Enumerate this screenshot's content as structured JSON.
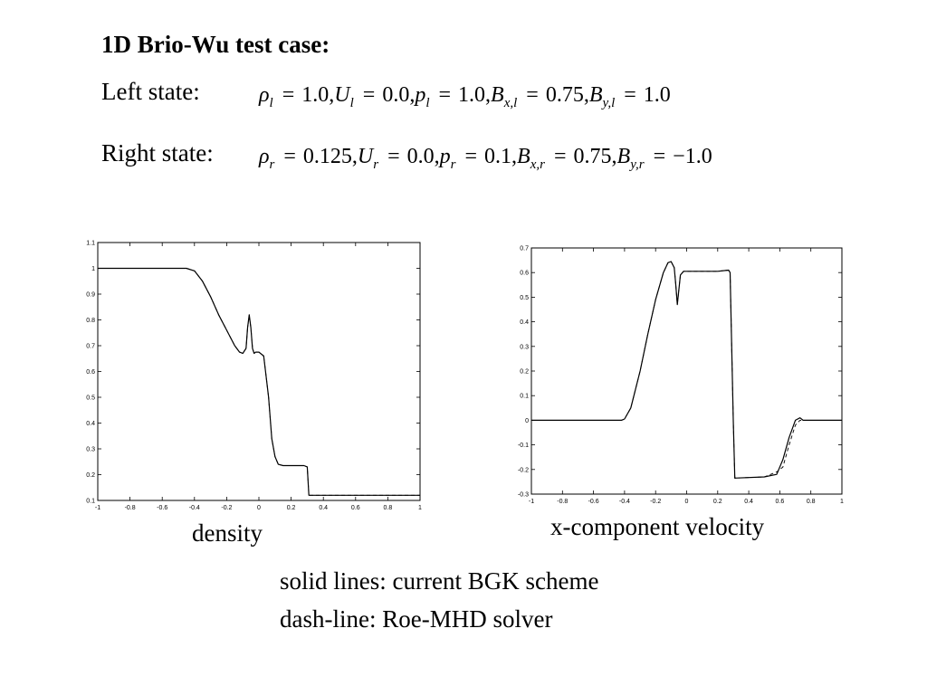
{
  "slide": {
    "title": "1D Brio-Wu test case:",
    "left_label": "Left state:",
    "right_label": "Right state:",
    "left_terms": [
      {
        "sym": "ρ",
        "sub": "l",
        "val": "1.0,"
      },
      {
        "sym": "U",
        "sub": "l",
        "val": "0.0,"
      },
      {
        "sym": "p",
        "sub": "l",
        "val": "1.0,"
      },
      {
        "sym": "B",
        "sub": "x,l",
        "val": "0.75,"
      },
      {
        "sym": "B",
        "sub": "y,l",
        "val": "1.0"
      }
    ],
    "right_terms": [
      {
        "sym": "ρ",
        "sub": "r",
        "val": "0.125,"
      },
      {
        "sym": "U",
        "sub": "r",
        "val": "0.0,"
      },
      {
        "sym": "p",
        "sub": "r",
        "val": "0.1,"
      },
      {
        "sym": "B",
        "sub": "x,r",
        "val": "0.75,"
      },
      {
        "sym": "B",
        "sub": "y,r",
        "val": "−1.0"
      }
    ],
    "equals_sign": "=",
    "legend_line1": "solid lines: current BGK scheme",
    "legend_line2": "dash-line: Roe-MHD solver"
  },
  "chart_data": [
    {
      "type": "line",
      "caption": "density",
      "xlim": [
        -1,
        1
      ],
      "ylim": [
        0.1,
        1.1
      ],
      "xticks": [
        -1,
        -0.8,
        -0.6,
        -0.4,
        -0.2,
        0,
        0.2,
        0.4,
        0.6,
        0.8,
        1
      ],
      "xtick_labels": [
        "-1",
        "-0.8",
        "-0.6",
        "-0.4",
        "-0.2",
        "0",
        "0.2",
        "0.4",
        "0.6",
        "0.8",
        "1"
      ],
      "yticks": [
        0.1,
        0.2,
        0.3,
        0.4,
        0.5,
        0.6,
        0.7,
        0.8,
        0.9,
        1.0,
        1.1
      ],
      "ytick_labels": [
        "0.1",
        "0.2",
        "0.3",
        "0.4",
        "0.5",
        "0.6",
        "0.7",
        "0.8",
        "0.9",
        "1",
        "1.1"
      ],
      "grid": false,
      "series": [
        {
          "style": "solid",
          "x": [
            -1,
            -0.45,
            -0.4,
            -0.35,
            -0.3,
            -0.25,
            -0.2,
            -0.15,
            -0.12,
            -0.1,
            -0.08,
            -0.07,
            -0.06,
            -0.05,
            -0.04,
            -0.03,
            -0.02,
            0,
            0.03,
            0.06,
            0.08,
            0.1,
            0.12,
            0.15,
            0.2,
            0.28,
            0.3,
            0.31,
            0.5,
            0.8,
            1
          ],
          "y": [
            1.0,
            1.0,
            0.99,
            0.95,
            0.89,
            0.82,
            0.76,
            0.7,
            0.675,
            0.67,
            0.69,
            0.77,
            0.82,
            0.77,
            0.69,
            0.67,
            0.675,
            0.675,
            0.66,
            0.5,
            0.34,
            0.27,
            0.24,
            0.235,
            0.235,
            0.235,
            0.23,
            0.12,
            0.12,
            0.12,
            0.12
          ]
        },
        {
          "style": "dashed",
          "x": [
            -1,
            -0.45,
            -0.4,
            -0.35,
            -0.3,
            -0.25,
            -0.2,
            -0.15,
            -0.12,
            -0.1,
            -0.08,
            -0.07,
            -0.06,
            -0.05,
            -0.04,
            -0.03,
            -0.02,
            0,
            0.03,
            0.06,
            0.08,
            0.1,
            0.12,
            0.15,
            0.2,
            0.28,
            0.3,
            0.31,
            0.5,
            0.8,
            1
          ],
          "y": [
            1.0,
            1.0,
            0.99,
            0.95,
            0.89,
            0.82,
            0.76,
            0.7,
            0.675,
            0.67,
            0.69,
            0.77,
            0.815,
            0.77,
            0.69,
            0.67,
            0.675,
            0.675,
            0.66,
            0.5,
            0.34,
            0.27,
            0.24,
            0.235,
            0.235,
            0.235,
            0.23,
            0.12,
            0.12,
            0.12,
            0.12
          ]
        }
      ]
    },
    {
      "type": "line",
      "caption": "x-component velocity",
      "xlim": [
        -1,
        1
      ],
      "ylim": [
        -0.3,
        0.7
      ],
      "xticks": [
        -1,
        -0.8,
        -0.6,
        -0.4,
        -0.2,
        0,
        0.2,
        0.4,
        0.6,
        0.8,
        1
      ],
      "xtick_labels": [
        "-1",
        "-0.8",
        "-0.6",
        "-0.4",
        "-0.2",
        "0",
        "0.2",
        "0.4",
        "0.6",
        "0.8",
        "1"
      ],
      "yticks": [
        -0.3,
        -0.2,
        -0.1,
        0,
        0.1,
        0.2,
        0.3,
        0.4,
        0.5,
        0.6,
        0.7
      ],
      "ytick_labels": [
        "-0.3",
        "-0.2",
        "-0.1",
        "0",
        "0.1",
        "0.2",
        "0.3",
        "0.4",
        "0.5",
        "0.6",
        "0.7"
      ],
      "grid": false,
      "series": [
        {
          "style": "solid",
          "x": [
            -1,
            -0.42,
            -0.4,
            -0.36,
            -0.3,
            -0.25,
            -0.2,
            -0.15,
            -0.12,
            -0.1,
            -0.08,
            -0.07,
            -0.06,
            -0.05,
            -0.04,
            -0.02,
            0,
            0.1,
            0.2,
            0.27,
            0.28,
            0.3,
            0.31,
            0.5,
            0.58,
            0.62,
            0.66,
            0.7,
            0.73,
            0.75,
            0.78,
            1
          ],
          "y": [
            0.0,
            0.0,
            0.005,
            0.05,
            0.2,
            0.35,
            0.49,
            0.6,
            0.64,
            0.645,
            0.62,
            0.55,
            0.47,
            0.53,
            0.59,
            0.605,
            0.605,
            0.605,
            0.605,
            0.61,
            0.6,
            0.0,
            -0.235,
            -0.23,
            -0.22,
            -0.16,
            -0.07,
            0.0,
            0.01,
            0.0,
            0.0,
            0.0
          ]
        },
        {
          "style": "dashed",
          "x": [
            -1,
            -0.42,
            -0.4,
            -0.36,
            -0.3,
            -0.25,
            -0.2,
            -0.15,
            -0.12,
            -0.1,
            -0.08,
            -0.07,
            -0.06,
            -0.05,
            -0.04,
            -0.02,
            0,
            0.1,
            0.2,
            0.27,
            0.28,
            0.3,
            0.31,
            0.5,
            0.58,
            0.62,
            0.66,
            0.7,
            0.73,
            0.75,
            0.78,
            1
          ],
          "y": [
            0.0,
            0.0,
            0.005,
            0.05,
            0.2,
            0.35,
            0.49,
            0.6,
            0.64,
            0.645,
            0.62,
            0.55,
            0.47,
            0.53,
            0.59,
            0.605,
            0.605,
            0.605,
            0.605,
            0.61,
            0.6,
            0.0,
            -0.235,
            -0.23,
            -0.21,
            -0.19,
            -0.1,
            -0.02,
            0.0,
            0.0,
            0.0,
            0.0
          ]
        }
      ]
    }
  ]
}
